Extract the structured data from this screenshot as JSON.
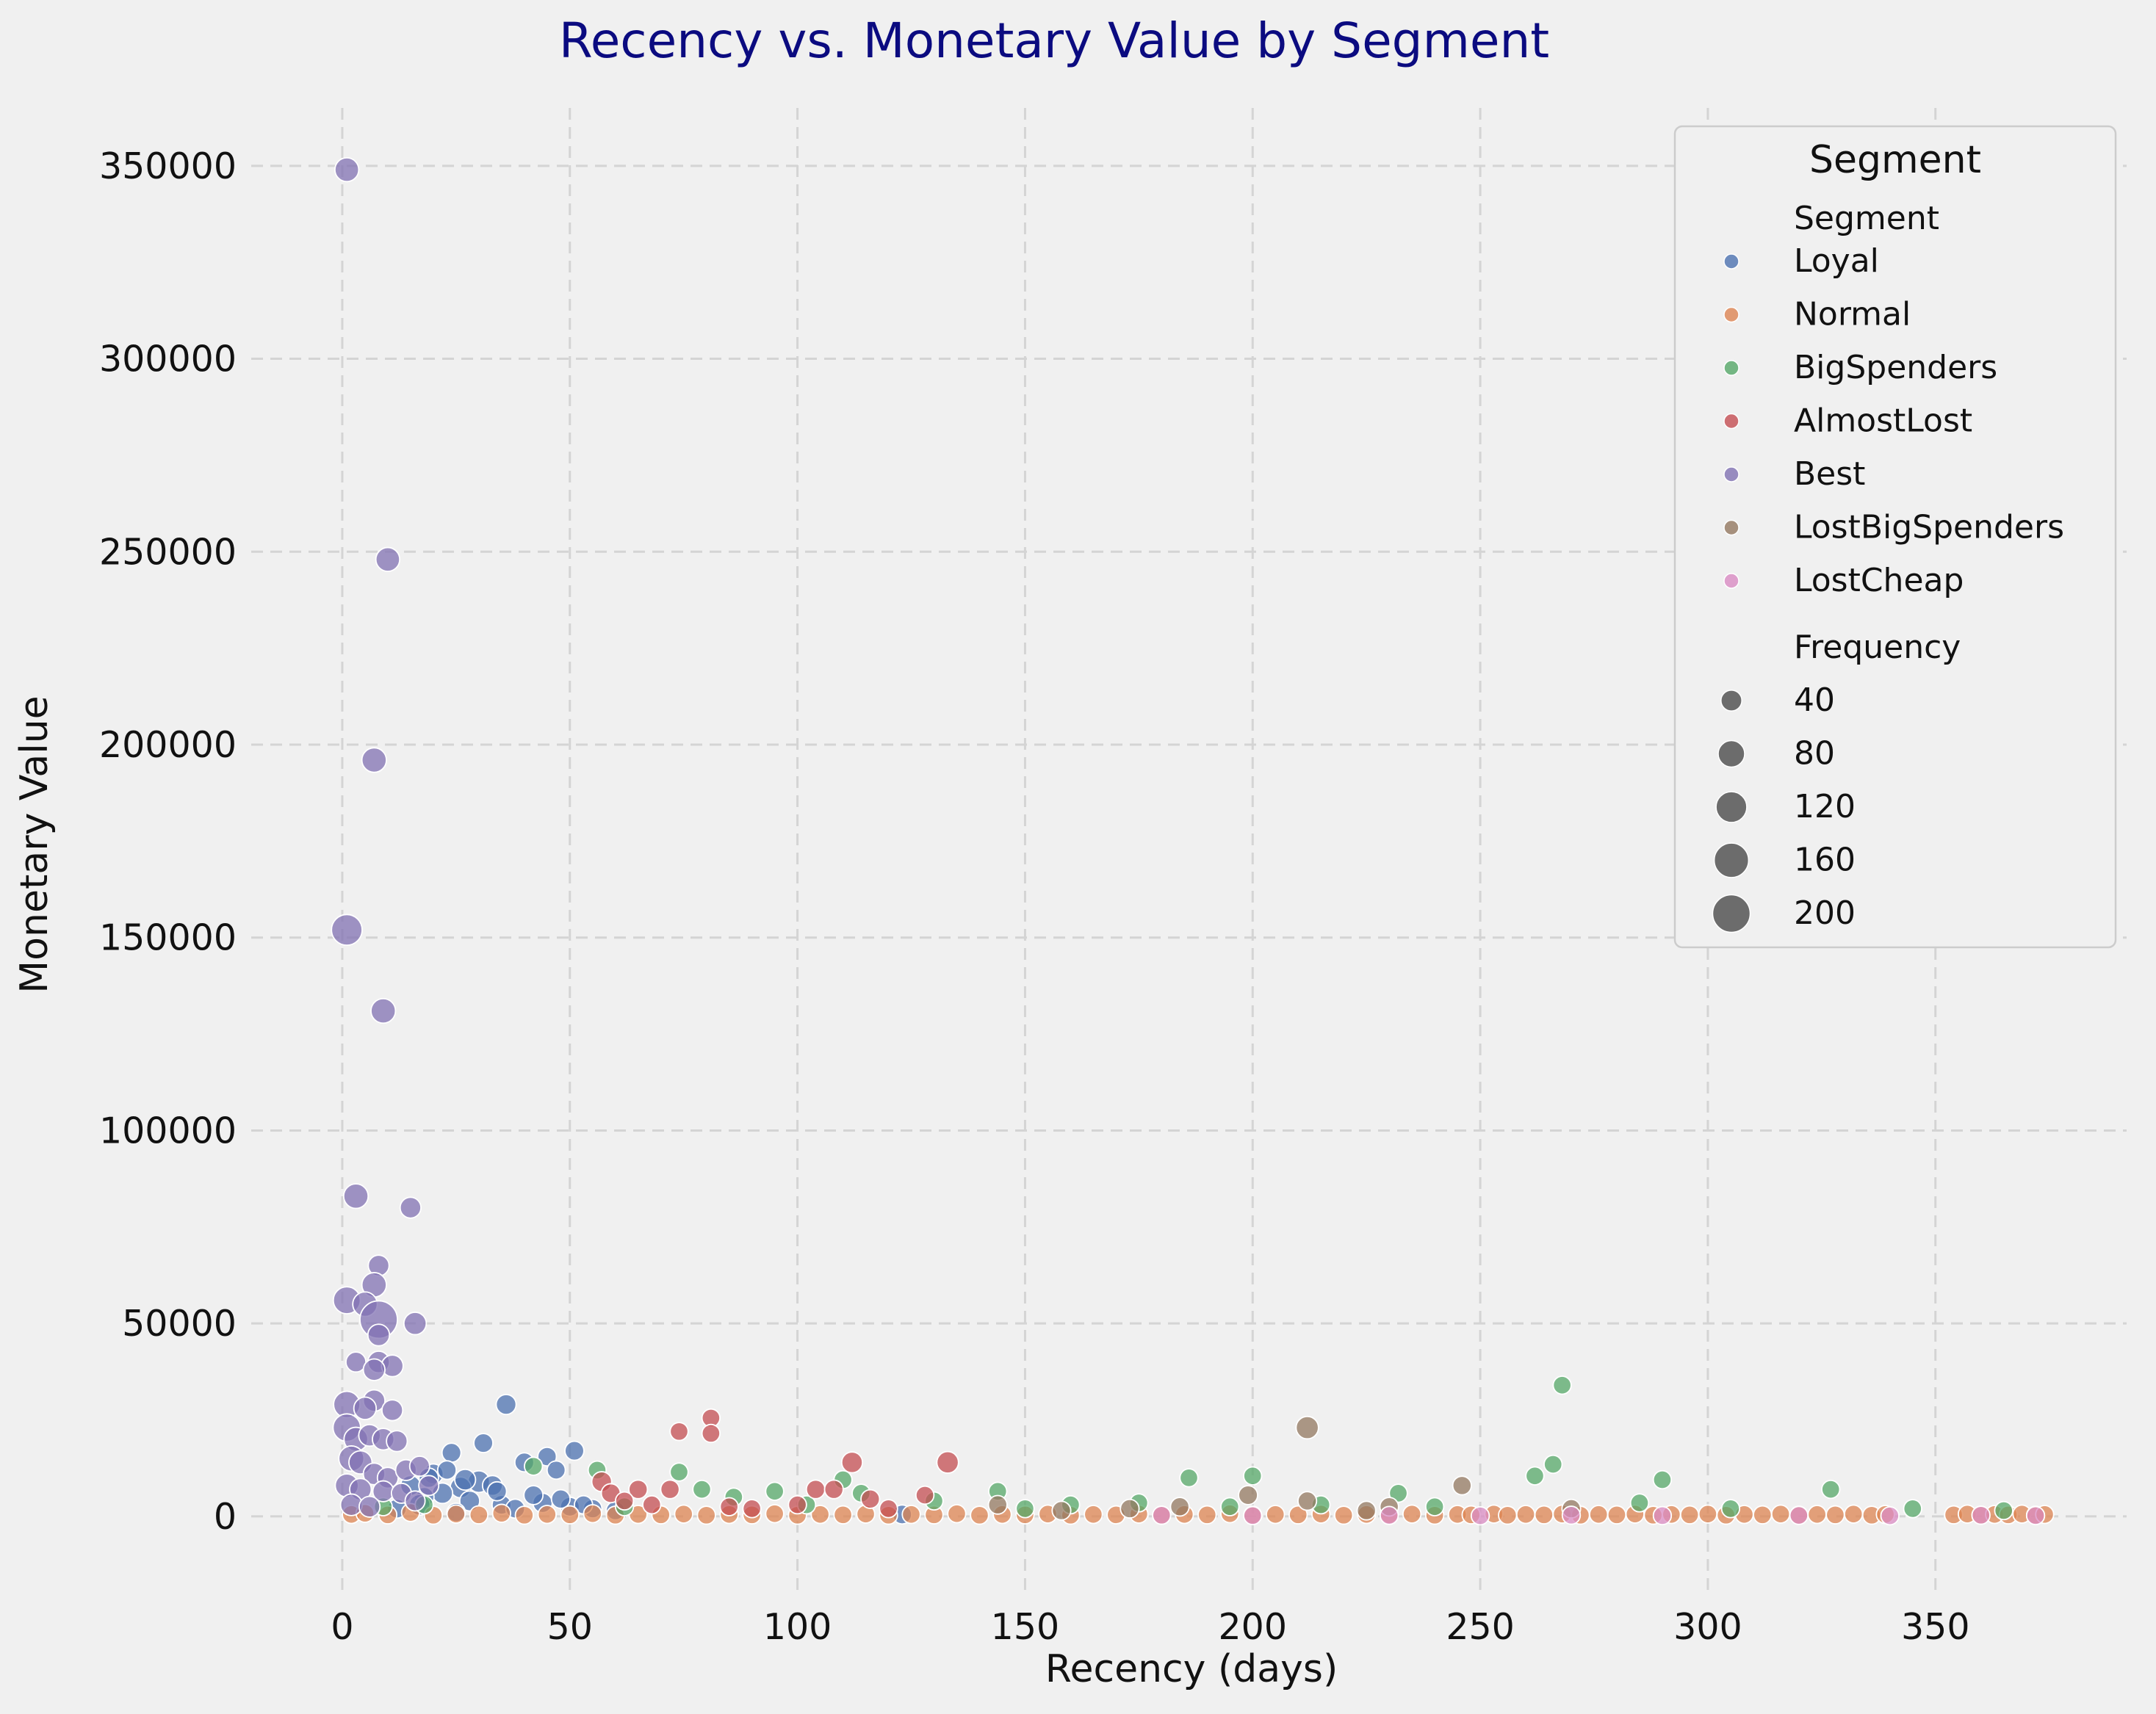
{
  "chart_data": {
    "type": "scatter",
    "title": "Recency vs. Monetary Value by Segment",
    "xlabel": "Recency (days)",
    "ylabel": "Monetary Value",
    "xlim": [
      -20,
      392
    ],
    "ylim": [
      -20000,
      365000
    ],
    "xticks": [
      0,
      50,
      100,
      150,
      200,
      250,
      300,
      350
    ],
    "yticks": [
      0,
      50000,
      100000,
      150000,
      200000,
      250000,
      300000,
      350000
    ],
    "grid": true,
    "legend": {
      "placement": "top-right",
      "title": "Segment",
      "hue_header": "Segment",
      "size_header": "Frequency",
      "size_entries": [
        40,
        80,
        120,
        160,
        200
      ]
    },
    "colors": {
      "Loyal": "#4c72b0",
      "Normal": "#dd8452",
      "BigSpenders": "#55a868",
      "AlmostLost": "#c44e52",
      "Best": "#8172b3",
      "LostBigSpenders": "#937860",
      "LostCheap": "#da8bc3",
      "size_legend": "#555555"
    },
    "series": [
      {
        "name": "Loyal",
        "points": [
          [
            20,
            11000,
            35
          ],
          [
            24,
            16500,
            30
          ],
          [
            31,
            19000,
            30
          ],
          [
            36,
            29000,
            35
          ],
          [
            40,
            14000,
            30
          ],
          [
            45,
            15500,
            28
          ],
          [
            47,
            12000,
            26
          ],
          [
            51,
            17000,
            30
          ],
          [
            30,
            9000,
            45
          ],
          [
            33,
            8000,
            35
          ],
          [
            26,
            7500,
            40
          ],
          [
            22,
            6000,
            38
          ],
          [
            18,
            5000,
            33
          ],
          [
            28,
            4000,
            35
          ],
          [
            35,
            3000,
            30
          ],
          [
            44,
            3500,
            32
          ],
          [
            50,
            2500,
            30
          ],
          [
            55,
            2000,
            28
          ],
          [
            42,
            5500,
            30
          ],
          [
            38,
            2000,
            30
          ],
          [
            17,
            3000,
            40
          ],
          [
            15,
            8000,
            35
          ],
          [
            23,
            12000,
            28
          ],
          [
            19,
            10000,
            32
          ],
          [
            27,
            9500,
            40
          ],
          [
            34,
            6500,
            30
          ],
          [
            48,
            4500,
            28
          ],
          [
            53,
            3000,
            26
          ],
          [
            12,
            2000,
            30
          ],
          [
            60,
            1500,
            28
          ],
          [
            123,
            500,
            30
          ],
          [
            25,
            1000,
            28
          ]
        ]
      },
      {
        "name": "Normal",
        "points": [
          [
            2,
            500,
            25
          ],
          [
            5,
            800,
            25
          ],
          [
            10,
            400,
            25
          ],
          [
            15,
            1000,
            25
          ],
          [
            20,
            300,
            25
          ],
          [
            25,
            600,
            25
          ],
          [
            30,
            400,
            25
          ],
          [
            35,
            800,
            25
          ],
          [
            40,
            300,
            25
          ],
          [
            45,
            500,
            25
          ],
          [
            50,
            400,
            25
          ],
          [
            55,
            700,
            25
          ],
          [
            60,
            300,
            25
          ],
          [
            65,
            500,
            25
          ],
          [
            70,
            400,
            25
          ],
          [
            75,
            600,
            25
          ],
          [
            80,
            300,
            25
          ],
          [
            85,
            500,
            25
          ],
          [
            90,
            400,
            25
          ],
          [
            95,
            700,
            25
          ],
          [
            100,
            300,
            25
          ],
          [
            105,
            500,
            25
          ],
          [
            110,
            400,
            25
          ],
          [
            115,
            600,
            25
          ],
          [
            120,
            300,
            25
          ],
          [
            125,
            500,
            25
          ],
          [
            130,
            400,
            25
          ],
          [
            135,
            700,
            25
          ],
          [
            140,
            300,
            25
          ],
          [
            145,
            500,
            25
          ],
          [
            150,
            400,
            25
          ],
          [
            155,
            600,
            25
          ],
          [
            160,
            300,
            25
          ],
          [
            165,
            500,
            25
          ],
          [
            170,
            400,
            25
          ],
          [
            175,
            600,
            25
          ],
          [
            180,
            300,
            25
          ],
          [
            185,
            500,
            25
          ],
          [
            190,
            400,
            25
          ],
          [
            195,
            700,
            25
          ],
          [
            200,
            300,
            25
          ],
          [
            205,
            500,
            25
          ],
          [
            210,
            400,
            25
          ],
          [
            215,
            600,
            25
          ],
          [
            220,
            300,
            25
          ],
          [
            225,
            500,
            25
          ],
          [
            230,
            400,
            25
          ],
          [
            235,
            600,
            25
          ],
          [
            240,
            300,
            25
          ],
          [
            245,
            500,
            25
          ],
          [
            248,
            400,
            25
          ],
          [
            253,
            600,
            25
          ],
          [
            256,
            300,
            25
          ],
          [
            260,
            500,
            25
          ],
          [
            264,
            400,
            25
          ],
          [
            268,
            600,
            25
          ],
          [
            272,
            300,
            25
          ],
          [
            276,
            500,
            25
          ],
          [
            280,
            400,
            25
          ],
          [
            284,
            600,
            25
          ],
          [
            288,
            300,
            25
          ],
          [
            292,
            500,
            25
          ],
          [
            296,
            400,
            25
          ],
          [
            300,
            600,
            25
          ],
          [
            304,
            300,
            25
          ],
          [
            308,
            500,
            25
          ],
          [
            312,
            400,
            25
          ],
          [
            316,
            600,
            25
          ],
          [
            320,
            300,
            25
          ],
          [
            324,
            500,
            25
          ],
          [
            328,
            400,
            25
          ],
          [
            332,
            600,
            25
          ],
          [
            336,
            300,
            25
          ],
          [
            339,
            500,
            25
          ],
          [
            354,
            400,
            25
          ],
          [
            357,
            600,
            25
          ],
          [
            360,
            300,
            25
          ],
          [
            363,
            500,
            25
          ],
          [
            366,
            400,
            25
          ],
          [
            369,
            600,
            25
          ],
          [
            372,
            300,
            25
          ],
          [
            374,
            500,
            25
          ]
        ]
      },
      {
        "name": "BigSpenders",
        "points": [
          [
            42,
            13000,
            25
          ],
          [
            56,
            12000,
            25
          ],
          [
            74,
            11500,
            25
          ],
          [
            79,
            7000,
            25
          ],
          [
            95,
            6500,
            25
          ],
          [
            110,
            9500,
            25
          ],
          [
            114,
            6000,
            25
          ],
          [
            144,
            6500,
            25
          ],
          [
            186,
            10000,
            25
          ],
          [
            200,
            10500,
            25
          ],
          [
            232,
            6000,
            25
          ],
          [
            262,
            10500,
            25
          ],
          [
            266,
            13500,
            25
          ],
          [
            268,
            34000,
            25
          ],
          [
            290,
            9500,
            25
          ],
          [
            327,
            7000,
            25
          ],
          [
            86,
            5000,
            25
          ],
          [
            130,
            4000,
            25
          ],
          [
            160,
            3000,
            25
          ],
          [
            175,
            3500,
            25
          ],
          [
            215,
            3000,
            25
          ],
          [
            240,
            2500,
            25
          ],
          [
            285,
            3500,
            25
          ],
          [
            305,
            2000,
            25
          ],
          [
            345,
            2000,
            25
          ],
          [
            365,
            1500,
            25
          ],
          [
            9,
            2500,
            25
          ],
          [
            18,
            3000,
            25
          ],
          [
            62,
            2500,
            25
          ],
          [
            102,
            3000,
            25
          ],
          [
            150,
            2000,
            25
          ],
          [
            195,
            2500,
            25
          ]
        ]
      },
      {
        "name": "AlmostLost",
        "points": [
          [
            74,
            22000,
            25
          ],
          [
            81,
            25500,
            25
          ],
          [
            81,
            21500,
            25
          ],
          [
            112,
            14000,
            40
          ],
          [
            133,
            14000,
            45
          ],
          [
            57,
            9000,
            35
          ],
          [
            59,
            6000,
            30
          ],
          [
            65,
            7000,
            28
          ],
          [
            72,
            7000,
            28
          ],
          [
            104,
            7000,
            28
          ],
          [
            108,
            7000,
            28
          ],
          [
            116,
            4500,
            28
          ],
          [
            128,
            5500,
            25
          ],
          [
            62,
            4000,
            25
          ],
          [
            68,
            3000,
            25
          ],
          [
            85,
            2500,
            25
          ],
          [
            90,
            2000,
            25
          ],
          [
            100,
            3000,
            25
          ],
          [
            120,
            2000,
            25
          ]
        ]
      },
      {
        "name": "Best",
        "points": [
          [
            1,
            349000,
            60
          ],
          [
            10,
            248000,
            60
          ],
          [
            7,
            196000,
            65
          ],
          [
            1,
            152000,
            120
          ],
          [
            9,
            131000,
            65
          ],
          [
            3,
            83000,
            65
          ],
          [
            15,
            80000,
            40
          ],
          [
            8,
            65000,
            40
          ],
          [
            7,
            60000,
            65
          ],
          [
            1,
            56000,
            85
          ],
          [
            5,
            55000,
            65
          ],
          [
            8,
            51000,
            200
          ],
          [
            16,
            50000,
            50
          ],
          [
            8,
            47000,
            45
          ],
          [
            3,
            40000,
            35
          ],
          [
            8,
            40000,
            45
          ],
          [
            11,
            39000,
            45
          ],
          [
            7,
            38000,
            45
          ],
          [
            1,
            29000,
            80
          ],
          [
            7,
            30000,
            45
          ],
          [
            11,
            27500,
            40
          ],
          [
            5,
            28000,
            50
          ],
          [
            1,
            23000,
            90
          ],
          [
            3,
            20000,
            60
          ],
          [
            6,
            21000,
            45
          ],
          [
            9,
            20000,
            45
          ],
          [
            12,
            19500,
            40
          ],
          [
            2,
            15000,
            70
          ],
          [
            4,
            14000,
            55
          ],
          [
            7,
            11000,
            45
          ],
          [
            10,
            10000,
            40
          ],
          [
            14,
            12000,
            40
          ],
          [
            17,
            13000,
            35
          ],
          [
            1,
            8000,
            55
          ],
          [
            4,
            7000,
            45
          ],
          [
            9,
            6500,
            40
          ],
          [
            13,
            6000,
            35
          ],
          [
            19,
            8000,
            35
          ],
          [
            2,
            3000,
            45
          ],
          [
            6,
            2500,
            40
          ],
          [
            16,
            4000,
            35
          ]
        ]
      },
      {
        "name": "LostBigSpenders",
        "points": [
          [
            212,
            23000,
            50
          ],
          [
            246,
            8000,
            28
          ],
          [
            199,
            5500,
            30
          ],
          [
            212,
            4000,
            28
          ],
          [
            144,
            3000,
            28
          ],
          [
            184,
            2500,
            28
          ],
          [
            173,
            2000,
            28
          ],
          [
            230,
            2500,
            28
          ],
          [
            270,
            2000,
            28
          ],
          [
            158,
            1500,
            28
          ],
          [
            225,
            1500,
            28
          ]
        ]
      },
      {
        "name": "LostCheap",
        "points": [
          [
            180,
            300,
            25
          ],
          [
            200,
            200,
            25
          ],
          [
            230,
            250,
            25
          ],
          [
            250,
            150,
            25
          ],
          [
            270,
            300,
            25
          ],
          [
            290,
            200,
            25
          ],
          [
            320,
            250,
            25
          ],
          [
            340,
            150,
            25
          ],
          [
            360,
            300,
            25
          ],
          [
            372,
            200,
            25
          ]
        ]
      }
    ]
  }
}
